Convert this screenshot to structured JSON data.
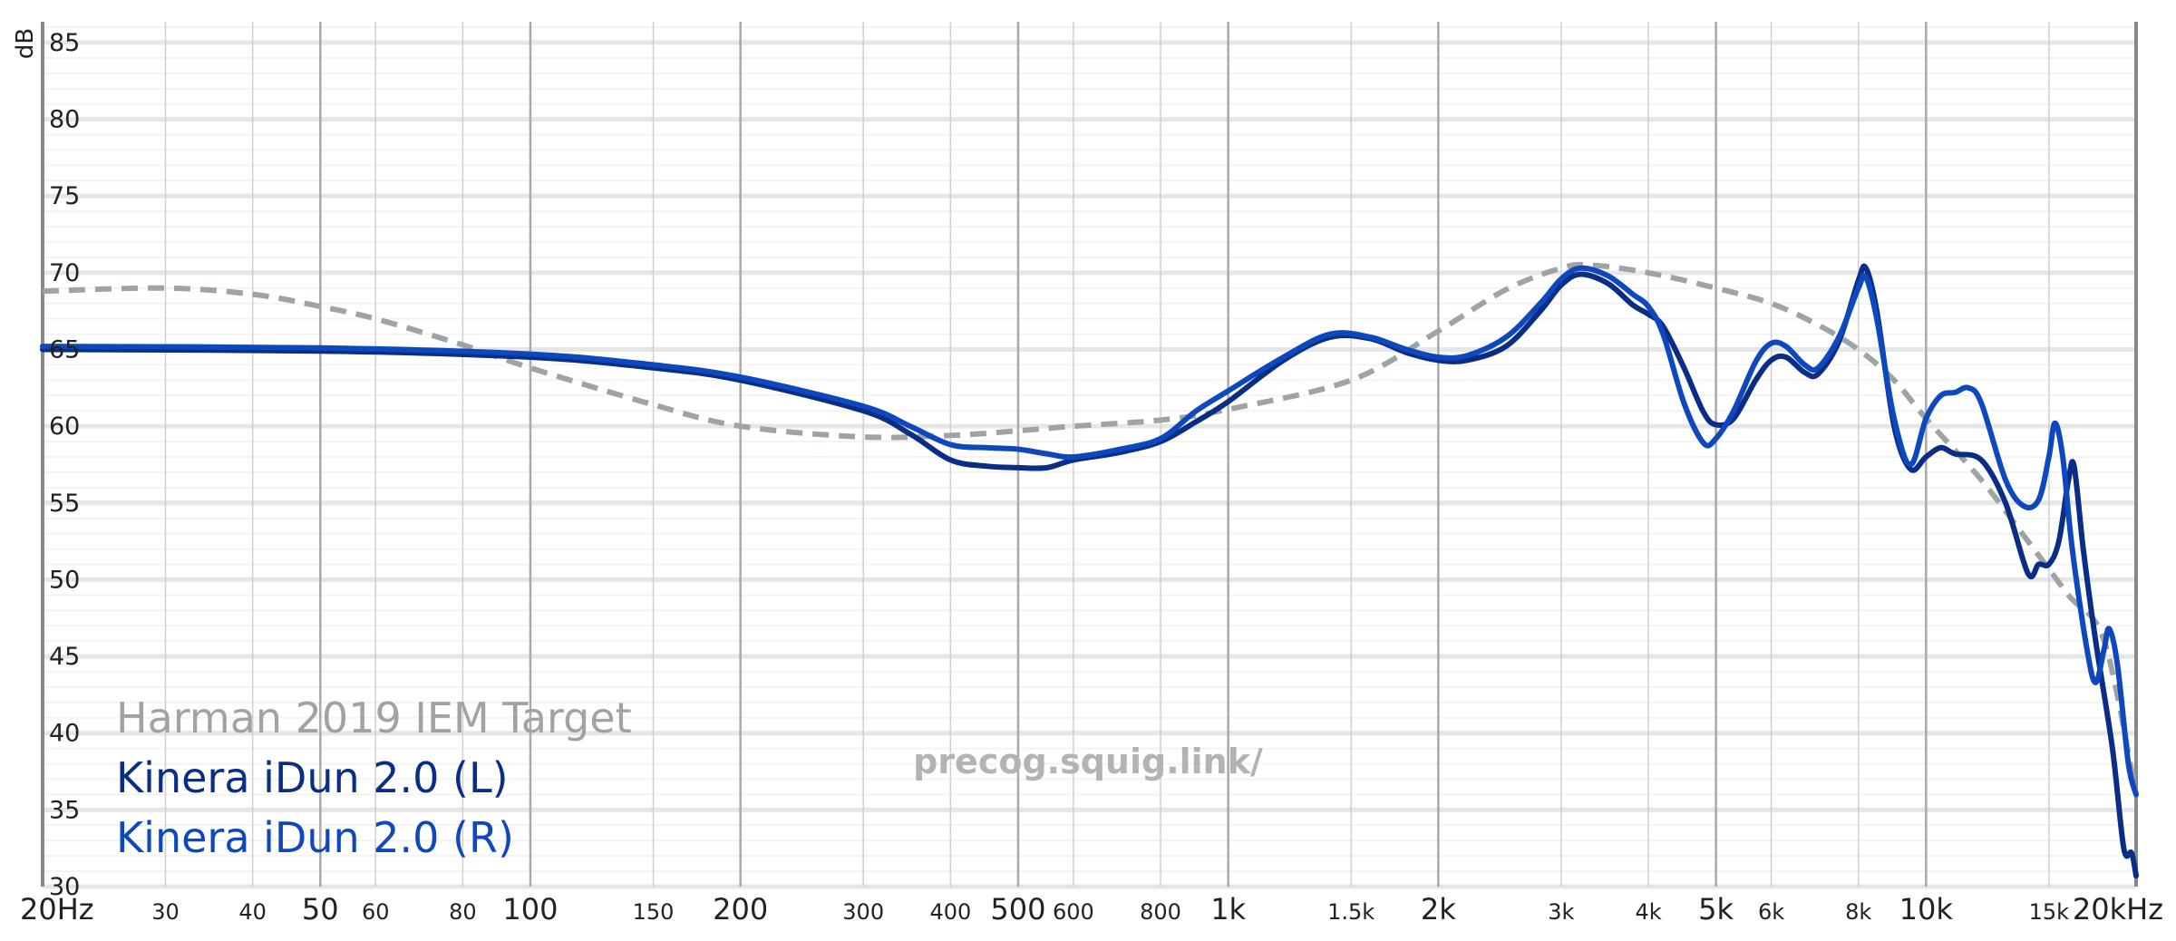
{
  "chart_data": {
    "type": "line",
    "title": "",
    "watermark": "precog.squig.link/",
    "xlabel": "",
    "ylabel": "dB",
    "x_scale": "log",
    "xlim": [
      20,
      20000
    ],
    "ylim": [
      30,
      86
    ],
    "grid": true,
    "legend_position": "bottom-left",
    "y_ticks": [
      {
        "value": 30,
        "label": "30"
      },
      {
        "value": 35,
        "label": "35"
      },
      {
        "value": 40,
        "label": "40"
      },
      {
        "value": 45,
        "label": "45"
      },
      {
        "value": 50,
        "label": "50"
      },
      {
        "value": 55,
        "label": "55"
      },
      {
        "value": 60,
        "label": "60"
      },
      {
        "value": 65,
        "label": "65"
      },
      {
        "value": 70,
        "label": "70"
      },
      {
        "value": 75,
        "label": "75"
      },
      {
        "value": 80,
        "label": "80"
      },
      {
        "value": 85,
        "label": "85"
      }
    ],
    "x_ticks": [
      {
        "value": 20,
        "label": "20Hz",
        "major": true
      },
      {
        "value": 30,
        "label": "30",
        "major": false
      },
      {
        "value": 40,
        "label": "40",
        "major": false
      },
      {
        "value": 50,
        "label": "50",
        "major": true
      },
      {
        "value": 60,
        "label": "60",
        "major": false
      },
      {
        "value": 80,
        "label": "80",
        "major": false
      },
      {
        "value": 100,
        "label": "100",
        "major": true
      },
      {
        "value": 150,
        "label": "150",
        "major": false
      },
      {
        "value": 200,
        "label": "200",
        "major": true
      },
      {
        "value": 300,
        "label": "300",
        "major": false
      },
      {
        "value": 400,
        "label": "400",
        "major": false
      },
      {
        "value": 500,
        "label": "500",
        "major": true
      },
      {
        "value": 600,
        "label": "600",
        "major": false
      },
      {
        "value": 800,
        "label": "800",
        "major": false
      },
      {
        "value": 1000,
        "label": "1k",
        "major": true
      },
      {
        "value": 1500,
        "label": "1.5k",
        "major": false
      },
      {
        "value": 2000,
        "label": "2k",
        "major": true
      },
      {
        "value": 3000,
        "label": "3k",
        "major": false
      },
      {
        "value": 4000,
        "label": "4k",
        "major": false
      },
      {
        "value": 5000,
        "label": "5k",
        "major": true
      },
      {
        "value": 6000,
        "label": "6k",
        "major": false
      },
      {
        "value": 8000,
        "label": "8k",
        "major": false
      },
      {
        "value": 10000,
        "label": "10k",
        "major": true
      },
      {
        "value": 15000,
        "label": "15k",
        "major": false
      },
      {
        "value": 20000,
        "label": "20kHz",
        "major": true
      }
    ],
    "series": [
      {
        "name": "Harman 2019 IEM Target",
        "color": "#9ea4a6",
        "style": "dashed",
        "points": [
          [
            20,
            68.8
          ],
          [
            30,
            69
          ],
          [
            40,
            68.6
          ],
          [
            50,
            67.8
          ],
          [
            60,
            67
          ],
          [
            80,
            65.3
          ],
          [
            100,
            63.8
          ],
          [
            150,
            61.4
          ],
          [
            200,
            60
          ],
          [
            300,
            59.3
          ],
          [
            400,
            59.4
          ],
          [
            500,
            59.7
          ],
          [
            600,
            60
          ],
          [
            800,
            60.4
          ],
          [
            1000,
            61.1
          ],
          [
            1500,
            63
          ],
          [
            2000,
            66.2
          ],
          [
            2500,
            68.9
          ],
          [
            3000,
            70.3
          ],
          [
            3300,
            70.5
          ],
          [
            4000,
            70
          ],
          [
            5000,
            69
          ],
          [
            6000,
            68
          ],
          [
            7000,
            66.6
          ],
          [
            8000,
            65
          ],
          [
            9000,
            63
          ],
          [
            10000,
            60.5
          ],
          [
            12000,
            56.5
          ],
          [
            14000,
            52.5
          ],
          [
            16000,
            49
          ],
          [
            18000,
            46
          ],
          [
            20000,
            36
          ]
        ]
      },
      {
        "name": "Kinera iDun 2.0 (L)",
        "color": "#0a2d85",
        "style": "solid",
        "points": [
          [
            20,
            65
          ],
          [
            50,
            64.9
          ],
          [
            100,
            64.5
          ],
          [
            150,
            63.8
          ],
          [
            200,
            63
          ],
          [
            300,
            61
          ],
          [
            350,
            59.5
          ],
          [
            400,
            57.8
          ],
          [
            450,
            57.4
          ],
          [
            500,
            57.3
          ],
          [
            550,
            57.3
          ],
          [
            600,
            57.8
          ],
          [
            700,
            58.3
          ],
          [
            800,
            59
          ],
          [
            900,
            60.3
          ],
          [
            1000,
            61.6
          ],
          [
            1200,
            64.3
          ],
          [
            1400,
            65.8
          ],
          [
            1600,
            65.7
          ],
          [
            1800,
            64.8
          ],
          [
            2000,
            64.3
          ],
          [
            2200,
            64.3
          ],
          [
            2500,
            65.2
          ],
          [
            2800,
            67.5
          ],
          [
            3000,
            69.2
          ],
          [
            3200,
            69.9
          ],
          [
            3500,
            69.3
          ],
          [
            3800,
            67.9
          ],
          [
            4000,
            67.3
          ],
          [
            4200,
            66.5
          ],
          [
            4500,
            63.8
          ],
          [
            4800,
            60.9
          ],
          [
            5000,
            60.1
          ],
          [
            5300,
            60.5
          ],
          [
            5700,
            63
          ],
          [
            6000,
            64.3
          ],
          [
            6300,
            64.5
          ],
          [
            6700,
            63.5
          ],
          [
            7000,
            63.4
          ],
          [
            7500,
            65.5
          ],
          [
            8000,
            69.5
          ],
          [
            8200,
            70.3
          ],
          [
            8500,
            67.5
          ],
          [
            9000,
            60
          ],
          [
            9500,
            57.2
          ],
          [
            10000,
            58
          ],
          [
            10500,
            58.6
          ],
          [
            11000,
            58.2
          ],
          [
            12000,
            57.8
          ],
          [
            13000,
            55
          ],
          [
            14000,
            50.4
          ],
          [
            14500,
            51
          ],
          [
            15000,
            51
          ],
          [
            15500,
            52.5
          ],
          [
            16000,
            56.5
          ],
          [
            16300,
            57.4
          ],
          [
            16800,
            52
          ],
          [
            17500,
            46
          ],
          [
            18500,
            39
          ],
          [
            19200,
            32.5
          ],
          [
            19700,
            32.2
          ],
          [
            20000,
            30.7
          ]
        ]
      },
      {
        "name": "Kinera iDun 2.0 (R)",
        "color": "#0e48be",
        "style": "solid",
        "points": [
          [
            20,
            65.2
          ],
          [
            50,
            65.1
          ],
          [
            100,
            64.7
          ],
          [
            150,
            64
          ],
          [
            200,
            63.2
          ],
          [
            300,
            61.3
          ],
          [
            350,
            60
          ],
          [
            400,
            58.8
          ],
          [
            450,
            58.6
          ],
          [
            500,
            58.5
          ],
          [
            550,
            58.2
          ],
          [
            600,
            58
          ],
          [
            700,
            58.5
          ],
          [
            800,
            59.2
          ],
          [
            900,
            61
          ],
          [
            1000,
            62.3
          ],
          [
            1200,
            64.5
          ],
          [
            1400,
            66
          ],
          [
            1600,
            65.8
          ],
          [
            1800,
            65
          ],
          [
            2000,
            64.5
          ],
          [
            2200,
            64.6
          ],
          [
            2500,
            65.8
          ],
          [
            2800,
            68
          ],
          [
            3000,
            69.6
          ],
          [
            3200,
            70.3
          ],
          [
            3500,
            69.8
          ],
          [
            3800,
            68.6
          ],
          [
            4000,
            67.8
          ],
          [
            4200,
            66
          ],
          [
            4500,
            61.5
          ],
          [
            4800,
            58.9
          ],
          [
            5000,
            59.2
          ],
          [
            5300,
            61
          ],
          [
            5700,
            64.2
          ],
          [
            6000,
            65.4
          ],
          [
            6300,
            65.2
          ],
          [
            6700,
            64
          ],
          [
            7000,
            63.8
          ],
          [
            7500,
            65.8
          ],
          [
            8000,
            69
          ],
          [
            8200,
            69.7
          ],
          [
            8500,
            67
          ],
          [
            9000,
            60.5
          ],
          [
            9500,
            57.5
          ],
          [
            10000,
            60.5
          ],
          [
            10500,
            62
          ],
          [
            11000,
            62.2
          ],
          [
            11500,
            62.5
          ],
          [
            12000,
            61.5
          ],
          [
            13000,
            56.5
          ],
          [
            13800,
            54.8
          ],
          [
            14500,
            55.2
          ],
          [
            15000,
            58
          ],
          [
            15300,
            60.2
          ],
          [
            15700,
            58
          ],
          [
            16200,
            52
          ],
          [
            17000,
            45.5
          ],
          [
            17500,
            43.3
          ],
          [
            18000,
            45.5
          ],
          [
            18300,
            46.8
          ],
          [
            18800,
            44.5
          ],
          [
            19500,
            38
          ],
          [
            20000,
            36
          ]
        ]
      }
    ]
  }
}
